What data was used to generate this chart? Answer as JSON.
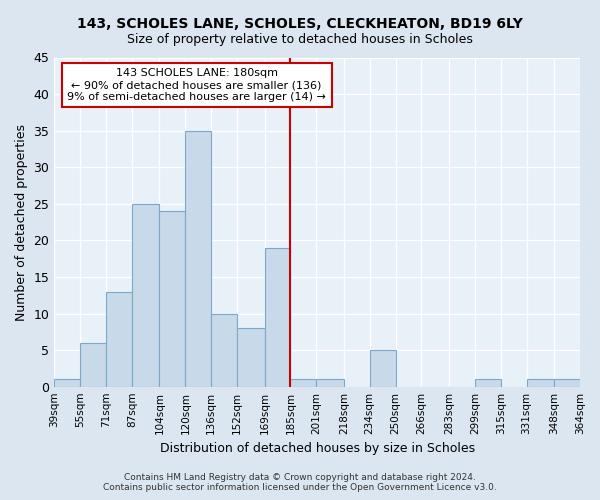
{
  "title": "143, SCHOLES LANE, SCHOLES, CLECKHEATON, BD19 6LY",
  "subtitle": "Size of property relative to detached houses in Scholes",
  "xlabel": "Distribution of detached houses by size in Scholes",
  "ylabel": "Number of detached properties",
  "bin_edges": [
    39,
    55,
    71,
    87,
    104,
    120,
    136,
    152,
    169,
    185,
    201,
    218,
    234,
    250,
    266,
    283,
    299,
    315,
    331,
    348,
    364
  ],
  "bin_labels": [
    "39sqm",
    "55sqm",
    "71sqm",
    "87sqm",
    "104sqm",
    "120sqm",
    "136sqm",
    "152sqm",
    "169sqm",
    "185sqm",
    "201sqm",
    "218sqm",
    "234sqm",
    "250sqm",
    "266sqm",
    "283sqm",
    "299sqm",
    "315sqm",
    "331sqm",
    "348sqm",
    "364sqm"
  ],
  "counts": [
    1,
    6,
    13,
    25,
    24,
    35,
    10,
    8,
    19,
    1,
    1,
    0,
    5,
    0,
    0,
    0,
    1,
    0,
    1,
    1
  ],
  "bar_facecolor": "#c8d9ea",
  "bar_edgecolor": "#7aaac8",
  "vline_x": 185,
  "vline_color": "#cc0000",
  "ylim": [
    0,
    45
  ],
  "yticks": [
    0,
    5,
    10,
    15,
    20,
    25,
    30,
    35,
    40,
    45
  ],
  "annotation_text": "143 SCHOLES LANE: 180sqm\n← 90% of detached houses are smaller (136)\n9% of semi-detached houses are larger (14) →",
  "annotation_box_edgecolor": "#cc0000",
  "annotation_box_facecolor": "#ffffff",
  "footer_text": "Contains HM Land Registry data © Crown copyright and database right 2024.\nContains public sector information licensed under the Open Government Licence v3.0.",
  "fig_facecolor": "#dce6f0",
  "plot_bg_color": "#e8f0f8"
}
